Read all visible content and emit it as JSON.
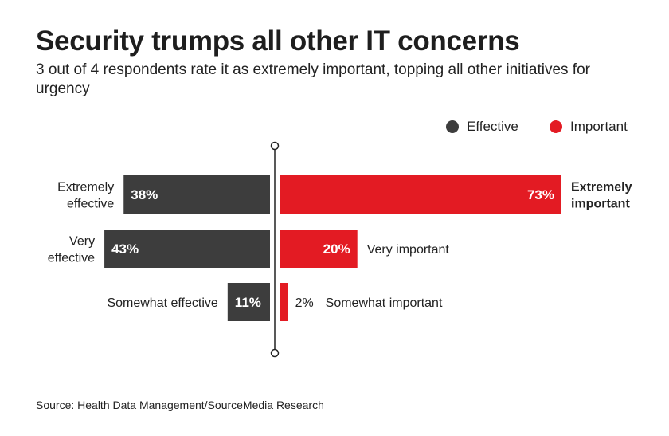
{
  "title": "Security trumps all other IT concerns",
  "subtitle": "3 out of 4 respondents rate it as extremely important, topping all other initiatives for urgency",
  "source": "Source: Health Data Management/SourceMedia Research",
  "colors": {
    "effective": "#3d3d3d",
    "important": "#e31b23",
    "axis": "#222222"
  },
  "chart_data": {
    "type": "bar",
    "orientation": "diverging-horizontal",
    "title": "Security trumps all other IT concerns",
    "legend": [
      "Effective",
      "Important"
    ],
    "xlim": [
      0,
      100
    ],
    "series": [
      {
        "name": "Effective",
        "direction": "left",
        "categories": [
          "Extremely effective",
          "Very effective",
          "Somewhat effective"
        ],
        "category_lines": [
          [
            "Extremely",
            "effective"
          ],
          [
            "Very",
            "effective"
          ],
          [
            "Somewhat effective"
          ]
        ],
        "values": [
          38,
          43,
          11
        ],
        "value_labels": [
          "38%",
          "43%",
          "11%"
        ]
      },
      {
        "name": "Important",
        "direction": "right",
        "categories": [
          "Extremely important",
          "Very important",
          "Somewhat important"
        ],
        "category_lines": [
          [
            "Extremely",
            "important"
          ],
          [
            "Very important"
          ],
          [
            "Somewhat important"
          ]
        ],
        "category_bold": [
          true,
          false,
          false
        ],
        "values": [
          73,
          20,
          2
        ],
        "value_labels": [
          "73%",
          "20%",
          "2%"
        ]
      }
    ]
  }
}
